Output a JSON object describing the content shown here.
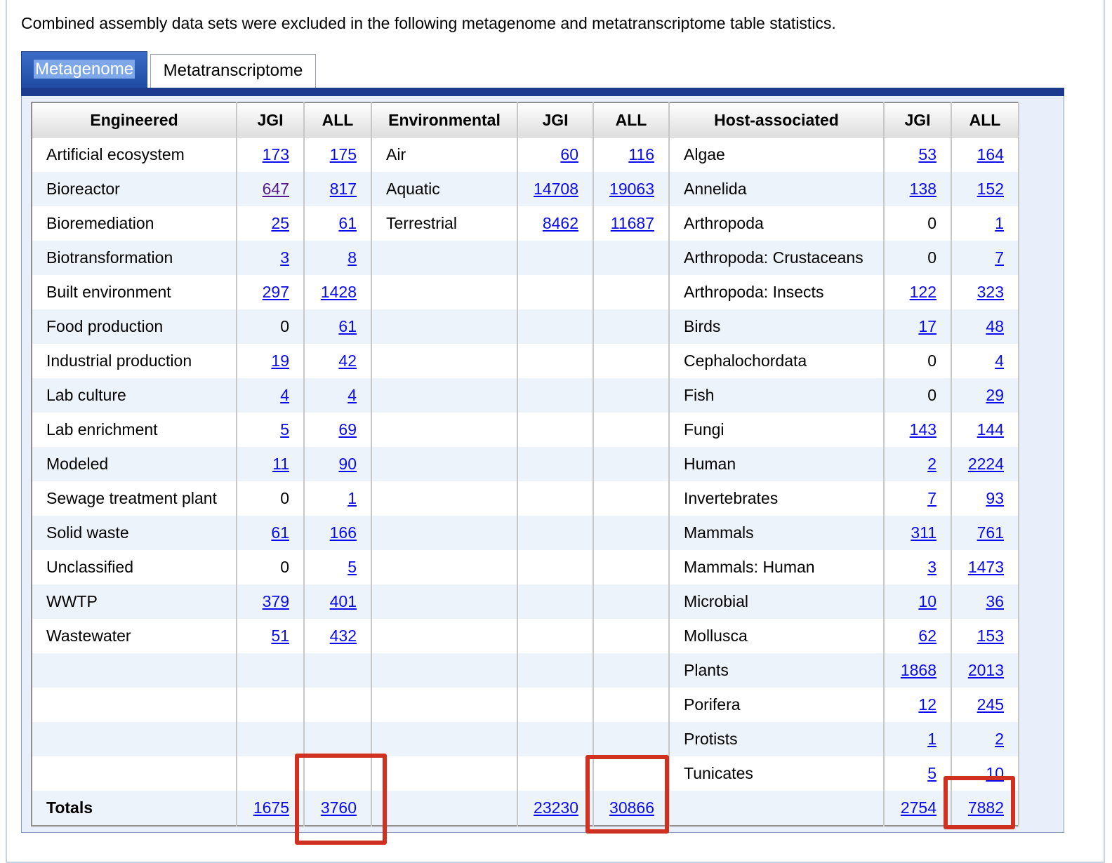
{
  "intro_text": "Combined assembly data sets were excluded in the following metagenome and metatranscriptome table statistics.",
  "tabs": [
    {
      "label": "Metagenome",
      "active": true
    },
    {
      "label": "Metatranscriptome",
      "active": false
    }
  ],
  "table": {
    "headers": [
      "Engineered",
      "JGI",
      "ALL",
      "Environmental",
      "JGI",
      "ALL",
      "Host-associated",
      "JGI",
      "ALL"
    ],
    "rows": [
      [
        {
          "t": "Artificial ecosystem"
        },
        {
          "t": "173",
          "link": true
        },
        {
          "t": "175",
          "link": true
        },
        {
          "t": "Air"
        },
        {
          "t": "60",
          "link": true
        },
        {
          "t": "116",
          "link": true
        },
        {
          "t": "Algae"
        },
        {
          "t": "53",
          "link": true
        },
        {
          "t": "164",
          "link": true
        }
      ],
      [
        {
          "t": "Bioreactor"
        },
        {
          "t": "647",
          "link": true,
          "visited": true
        },
        {
          "t": "817",
          "link": true
        },
        {
          "t": "Aquatic"
        },
        {
          "t": "14708",
          "link": true
        },
        {
          "t": "19063",
          "link": true
        },
        {
          "t": "Annelida"
        },
        {
          "t": "138",
          "link": true
        },
        {
          "t": "152",
          "link": true
        }
      ],
      [
        {
          "t": "Bioremediation"
        },
        {
          "t": "25",
          "link": true
        },
        {
          "t": "61",
          "link": true
        },
        {
          "t": "Terrestrial"
        },
        {
          "t": "8462",
          "link": true
        },
        {
          "t": "11687",
          "link": true
        },
        {
          "t": "Arthropoda"
        },
        {
          "t": "0"
        },
        {
          "t": "1",
          "link": true
        }
      ],
      [
        {
          "t": "Biotransformation"
        },
        {
          "t": "3",
          "link": true
        },
        {
          "t": "8",
          "link": true
        },
        {
          "t": ""
        },
        {
          "t": ""
        },
        {
          "t": ""
        },
        {
          "t": "Arthropoda: Crustaceans"
        },
        {
          "t": "0"
        },
        {
          "t": "7",
          "link": true
        }
      ],
      [
        {
          "t": "Built environment"
        },
        {
          "t": "297",
          "link": true
        },
        {
          "t": "1428",
          "link": true
        },
        {
          "t": ""
        },
        {
          "t": ""
        },
        {
          "t": ""
        },
        {
          "t": "Arthropoda: Insects"
        },
        {
          "t": "122",
          "link": true
        },
        {
          "t": "323",
          "link": true
        }
      ],
      [
        {
          "t": "Food production"
        },
        {
          "t": "0"
        },
        {
          "t": "61",
          "link": true
        },
        {
          "t": ""
        },
        {
          "t": ""
        },
        {
          "t": ""
        },
        {
          "t": "Birds"
        },
        {
          "t": "17",
          "link": true
        },
        {
          "t": "48",
          "link": true
        }
      ],
      [
        {
          "t": "Industrial production"
        },
        {
          "t": "19",
          "link": true
        },
        {
          "t": "42",
          "link": true
        },
        {
          "t": ""
        },
        {
          "t": ""
        },
        {
          "t": ""
        },
        {
          "t": "Cephalochordata"
        },
        {
          "t": "0"
        },
        {
          "t": "4",
          "link": true
        }
      ],
      [
        {
          "t": "Lab culture"
        },
        {
          "t": "4",
          "link": true
        },
        {
          "t": "4",
          "link": true
        },
        {
          "t": ""
        },
        {
          "t": ""
        },
        {
          "t": ""
        },
        {
          "t": "Fish"
        },
        {
          "t": "0"
        },
        {
          "t": "29",
          "link": true
        }
      ],
      [
        {
          "t": "Lab enrichment"
        },
        {
          "t": "5",
          "link": true
        },
        {
          "t": "69",
          "link": true
        },
        {
          "t": ""
        },
        {
          "t": ""
        },
        {
          "t": ""
        },
        {
          "t": "Fungi"
        },
        {
          "t": "143",
          "link": true
        },
        {
          "t": "144",
          "link": true
        }
      ],
      [
        {
          "t": "Modeled"
        },
        {
          "t": "11",
          "link": true
        },
        {
          "t": "90",
          "link": true
        },
        {
          "t": ""
        },
        {
          "t": ""
        },
        {
          "t": ""
        },
        {
          "t": "Human"
        },
        {
          "t": "2",
          "link": true
        },
        {
          "t": "2224",
          "link": true
        }
      ],
      [
        {
          "t": "Sewage treatment plant"
        },
        {
          "t": "0"
        },
        {
          "t": "1",
          "link": true
        },
        {
          "t": ""
        },
        {
          "t": ""
        },
        {
          "t": ""
        },
        {
          "t": "Invertebrates"
        },
        {
          "t": "7",
          "link": true
        },
        {
          "t": "93",
          "link": true
        }
      ],
      [
        {
          "t": "Solid waste"
        },
        {
          "t": "61",
          "link": true
        },
        {
          "t": "166",
          "link": true
        },
        {
          "t": ""
        },
        {
          "t": ""
        },
        {
          "t": ""
        },
        {
          "t": "Mammals"
        },
        {
          "t": "311",
          "link": true
        },
        {
          "t": "761",
          "link": true
        }
      ],
      [
        {
          "t": "Unclassified"
        },
        {
          "t": "0"
        },
        {
          "t": "5",
          "link": true
        },
        {
          "t": ""
        },
        {
          "t": ""
        },
        {
          "t": ""
        },
        {
          "t": "Mammals: Human"
        },
        {
          "t": "3",
          "link": true
        },
        {
          "t": "1473",
          "link": true
        }
      ],
      [
        {
          "t": "WWTP"
        },
        {
          "t": "379",
          "link": true
        },
        {
          "t": "401",
          "link": true
        },
        {
          "t": ""
        },
        {
          "t": ""
        },
        {
          "t": ""
        },
        {
          "t": "Microbial"
        },
        {
          "t": "10",
          "link": true
        },
        {
          "t": "36",
          "link": true
        }
      ],
      [
        {
          "t": "Wastewater"
        },
        {
          "t": "51",
          "link": true
        },
        {
          "t": "432",
          "link": true
        },
        {
          "t": ""
        },
        {
          "t": ""
        },
        {
          "t": ""
        },
        {
          "t": "Mollusca"
        },
        {
          "t": "62",
          "link": true
        },
        {
          "t": "153",
          "link": true
        }
      ],
      [
        {
          "t": ""
        },
        {
          "t": ""
        },
        {
          "t": ""
        },
        {
          "t": ""
        },
        {
          "t": ""
        },
        {
          "t": ""
        },
        {
          "t": "Plants"
        },
        {
          "t": "1868",
          "link": true
        },
        {
          "t": "2013",
          "link": true
        }
      ],
      [
        {
          "t": ""
        },
        {
          "t": ""
        },
        {
          "t": ""
        },
        {
          "t": ""
        },
        {
          "t": ""
        },
        {
          "t": ""
        },
        {
          "t": "Porifera"
        },
        {
          "t": "12",
          "link": true
        },
        {
          "t": "245",
          "link": true
        }
      ],
      [
        {
          "t": ""
        },
        {
          "t": ""
        },
        {
          "t": ""
        },
        {
          "t": ""
        },
        {
          "t": ""
        },
        {
          "t": ""
        },
        {
          "t": "Protists"
        },
        {
          "t": "1",
          "link": true
        },
        {
          "t": "2",
          "link": true
        }
      ],
      [
        {
          "t": ""
        },
        {
          "t": ""
        },
        {
          "t": ""
        },
        {
          "t": ""
        },
        {
          "t": ""
        },
        {
          "t": ""
        },
        {
          "t": "Tunicates"
        },
        {
          "t": "5",
          "link": true
        },
        {
          "t": "10",
          "link": true
        }
      ],
      [
        {
          "t": "Totals"
        },
        {
          "t": "1675",
          "link": true
        },
        {
          "t": "3760",
          "link": true
        },
        {
          "t": ""
        },
        {
          "t": "23230",
          "link": true
        },
        {
          "t": "30866",
          "link": true
        },
        {
          "t": ""
        },
        {
          "t": "2754",
          "link": true
        },
        {
          "t": "7882",
          "link": true
        }
      ]
    ]
  },
  "highlight_color": "#d0301f"
}
